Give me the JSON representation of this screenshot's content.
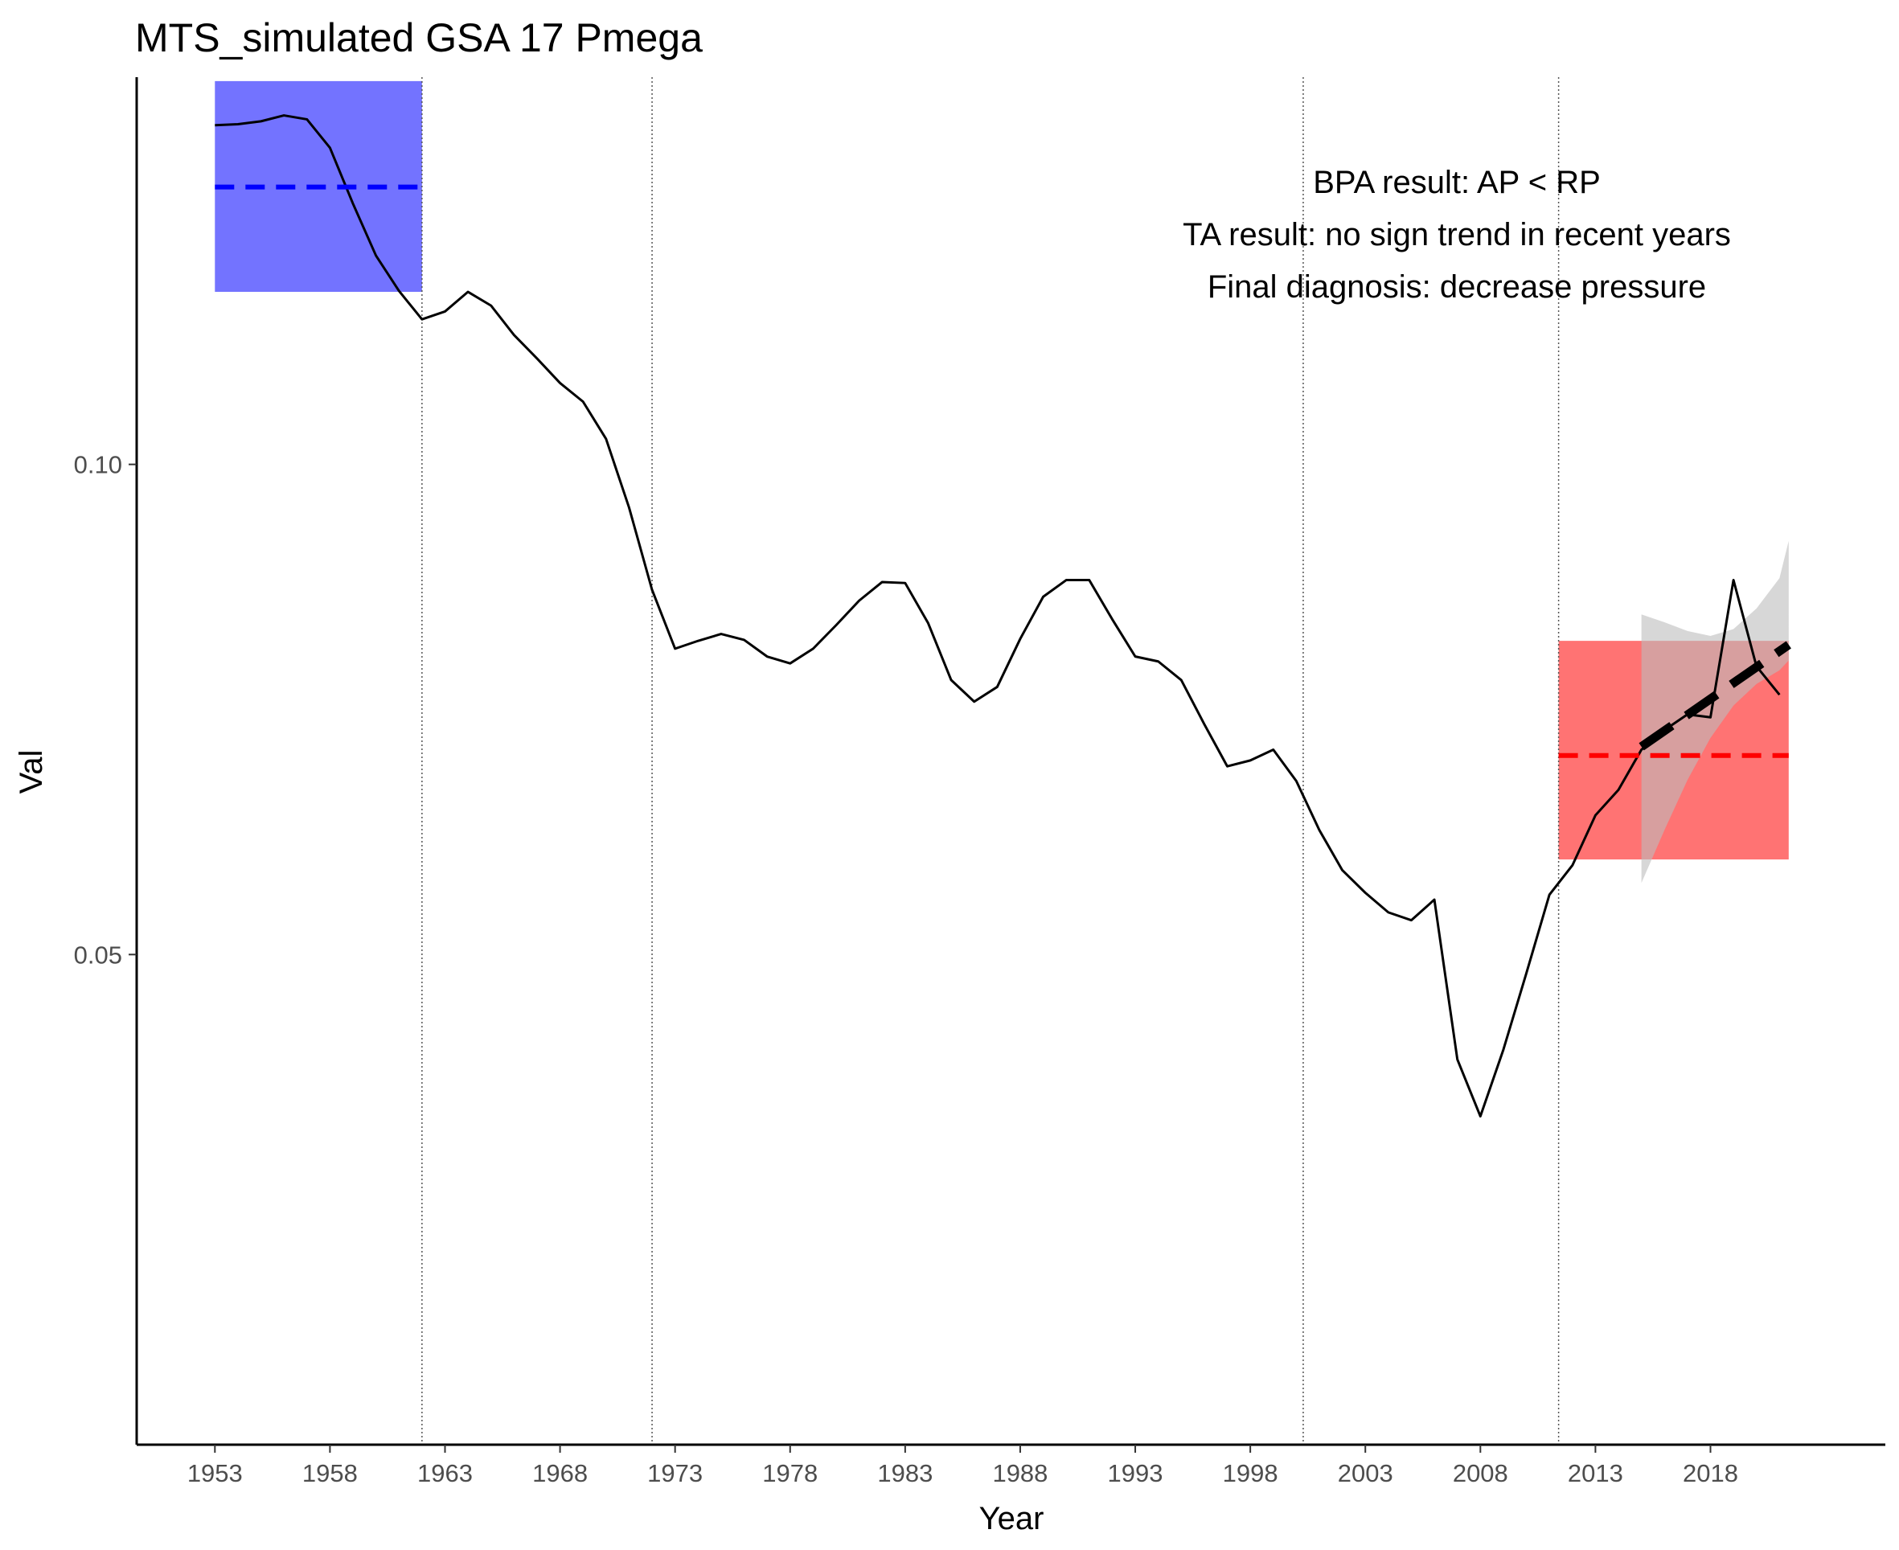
{
  "chart_data": {
    "type": "line",
    "title": "MTS_simulated GSA 17 Pmega",
    "xlabel": "Year",
    "ylabel": "Val",
    "xlim": [
      1949.6,
      2025.6
    ],
    "ylim": [
      0.0,
      0.1395
    ],
    "x_ticks": [
      1953,
      1958,
      1963,
      1968,
      1973,
      1978,
      1983,
      1988,
      1993,
      1998,
      2003,
      2008,
      2013,
      2018
    ],
    "y_ticks": [
      0.05,
      0.1
    ],
    "y_tick_labels": [
      "0.05",
      "0.10"
    ],
    "grid": false,
    "series": [
      {
        "x": [
          1953,
          1954,
          1955,
          1956,
          1957,
          1958,
          1959,
          1960,
          1961,
          1962,
          1963,
          1964,
          1965,
          1966,
          1967,
          1968,
          1969,
          1970,
          1971,
          1972,
          1973,
          1974,
          1975,
          1976,
          1977,
          1978,
          1979,
          1980,
          1981,
          1982,
          1983,
          1984,
          1985,
          1986,
          1987,
          1988,
          1989,
          1990,
          1991,
          1992,
          1993,
          1994,
          1995,
          1996,
          1997,
          1998,
          1999,
          2000,
          2001,
          2002,
          2003,
          2004,
          2005,
          2006,
          2007,
          2008,
          2009,
          2010,
          2011,
          2012,
          2013,
          2014,
          2015,
          2016,
          2017,
          2018,
          2019,
          2020,
          2021
        ],
        "values": [
          0.1346,
          0.1347,
          0.135,
          0.1356,
          0.1352,
          0.1323,
          0.1266,
          0.1213,
          0.1177,
          0.1148,
          0.1156,
          0.1176,
          0.1162,
          0.1132,
          0.1108,
          0.1083,
          0.1064,
          0.1026,
          0.0956,
          0.0872,
          0.0812,
          0.082,
          0.0827,
          0.0821,
          0.0804,
          0.0797,
          0.0812,
          0.0836,
          0.0861,
          0.088,
          0.0879,
          0.0838,
          0.078,
          0.0758,
          0.0773,
          0.0822,
          0.0865,
          0.0882,
          0.0882,
          0.0842,
          0.0804,
          0.0799,
          0.078,
          0.0735,
          0.0692,
          0.0698,
          0.0709,
          0.0677,
          0.0627,
          0.0586,
          0.0563,
          0.0543,
          0.0535,
          0.0556,
          0.0393,
          0.0335,
          0.0403,
          0.0481,
          0.0561,
          0.0591,
          0.0642,
          0.0668,
          0.0709,
          0.0729,
          0.0745,
          0.0742,
          0.0882,
          0.0794,
          0.0765
        ]
      }
    ],
    "vlines": [
      1962,
      1972,
      2000.3,
      2011.4
    ],
    "reference_period": {
      "x": [
        1953,
        1962
      ],
      "ymin": 0.1176,
      "ymax": 0.1391,
      "mean": 0.1283,
      "fill": "#7373ff",
      "line_color": "#0000ff"
    },
    "assessment_period": {
      "x": [
        2011.4,
        2021.4
      ],
      "ymin": 0.0597,
      "ymax": 0.082,
      "mean": 0.0703,
      "fill": "#ff7373",
      "line_color": "#ff0000"
    },
    "trend": {
      "x": [
        2015,
        2021.4
      ],
      "y": [
        0.0712,
        0.0816
      ],
      "ci_upper": [
        0.0847,
        0.0839,
        0.083,
        0.0825,
        0.0832,
        0.0853,
        0.0884,
        0.0922
      ],
      "ci_lower": [
        0.0573,
        0.0627,
        0.0678,
        0.0721,
        0.0754,
        0.0776,
        0.079,
        0.08
      ],
      "ci_x": [
        2015,
        2016,
        2017,
        2018,
        2019,
        2020,
        2021,
        2021.4
      ],
      "color": "#000000",
      "band": "#d4d4d4"
    },
    "annotations": [
      "BPA result: AP < RP",
      "TA result: no sign trend in recent years",
      "Final diagnosis: decrease pressure"
    ]
  }
}
